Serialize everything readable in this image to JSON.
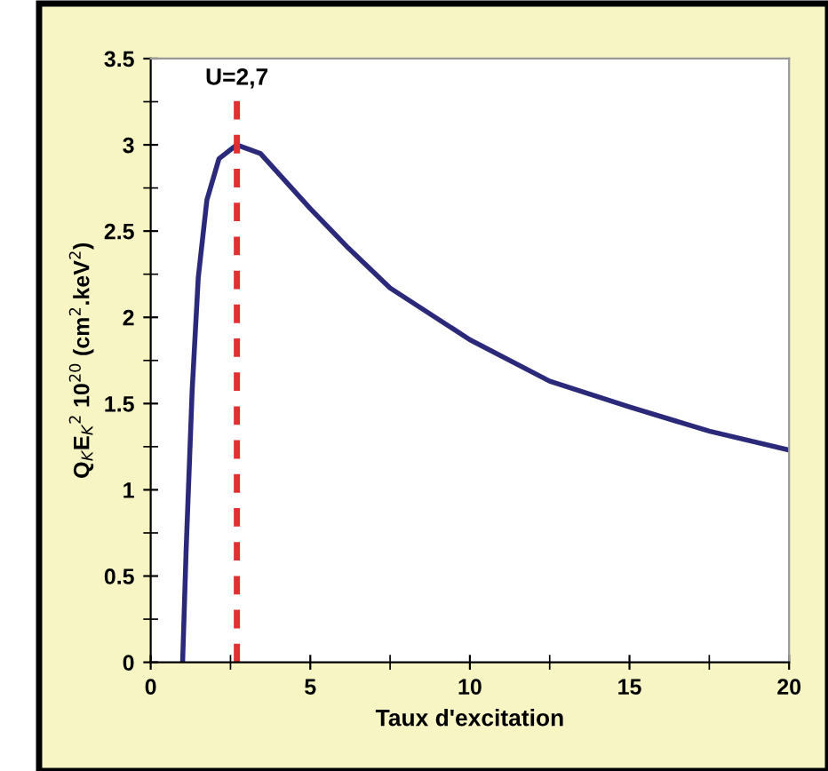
{
  "chart_data": {
    "type": "line",
    "xlabel": "Taux d'excitation",
    "ylabel": "Q$_{K}$E$_{K}$$^{2}$ 10$^{20}$ (cm$^{2}$.keV$^{2}$)",
    "x": [
      1.0,
      1.11,
      1.3,
      1.49,
      1.76,
      2.14,
      2.7,
      3.44,
      5.0,
      6.2,
      7.5,
      10.0,
      12.5,
      15.0,
      17.5,
      20.0
    ],
    "series": [
      {
        "color": "#2b2a7a",
        "values": [
          0,
          0.65,
          1.58,
          2.23,
          2.68,
          2.92,
          3.0,
          2.95,
          2.63,
          2.4,
          2.17,
          1.87,
          1.63,
          1.48,
          1.34,
          1.23
        ]
      }
    ],
    "xlim": [
      0,
      20
    ],
    "xticks": [
      0,
      5,
      10,
      15,
      20
    ],
    "ylim": [
      0,
      3.5
    ],
    "yticks": [
      0,
      0.5,
      1,
      1.5,
      2,
      2.5,
      3,
      3.5
    ],
    "ref_lines": [
      {
        "axis": "x",
        "value": 2.7,
        "label": "U=2,7",
        "color": "#e03030",
        "line_style": "dashed"
      }
    ],
    "grid": false,
    "legend": false,
    "marker": "none",
    "line_style": "solid"
  }
}
